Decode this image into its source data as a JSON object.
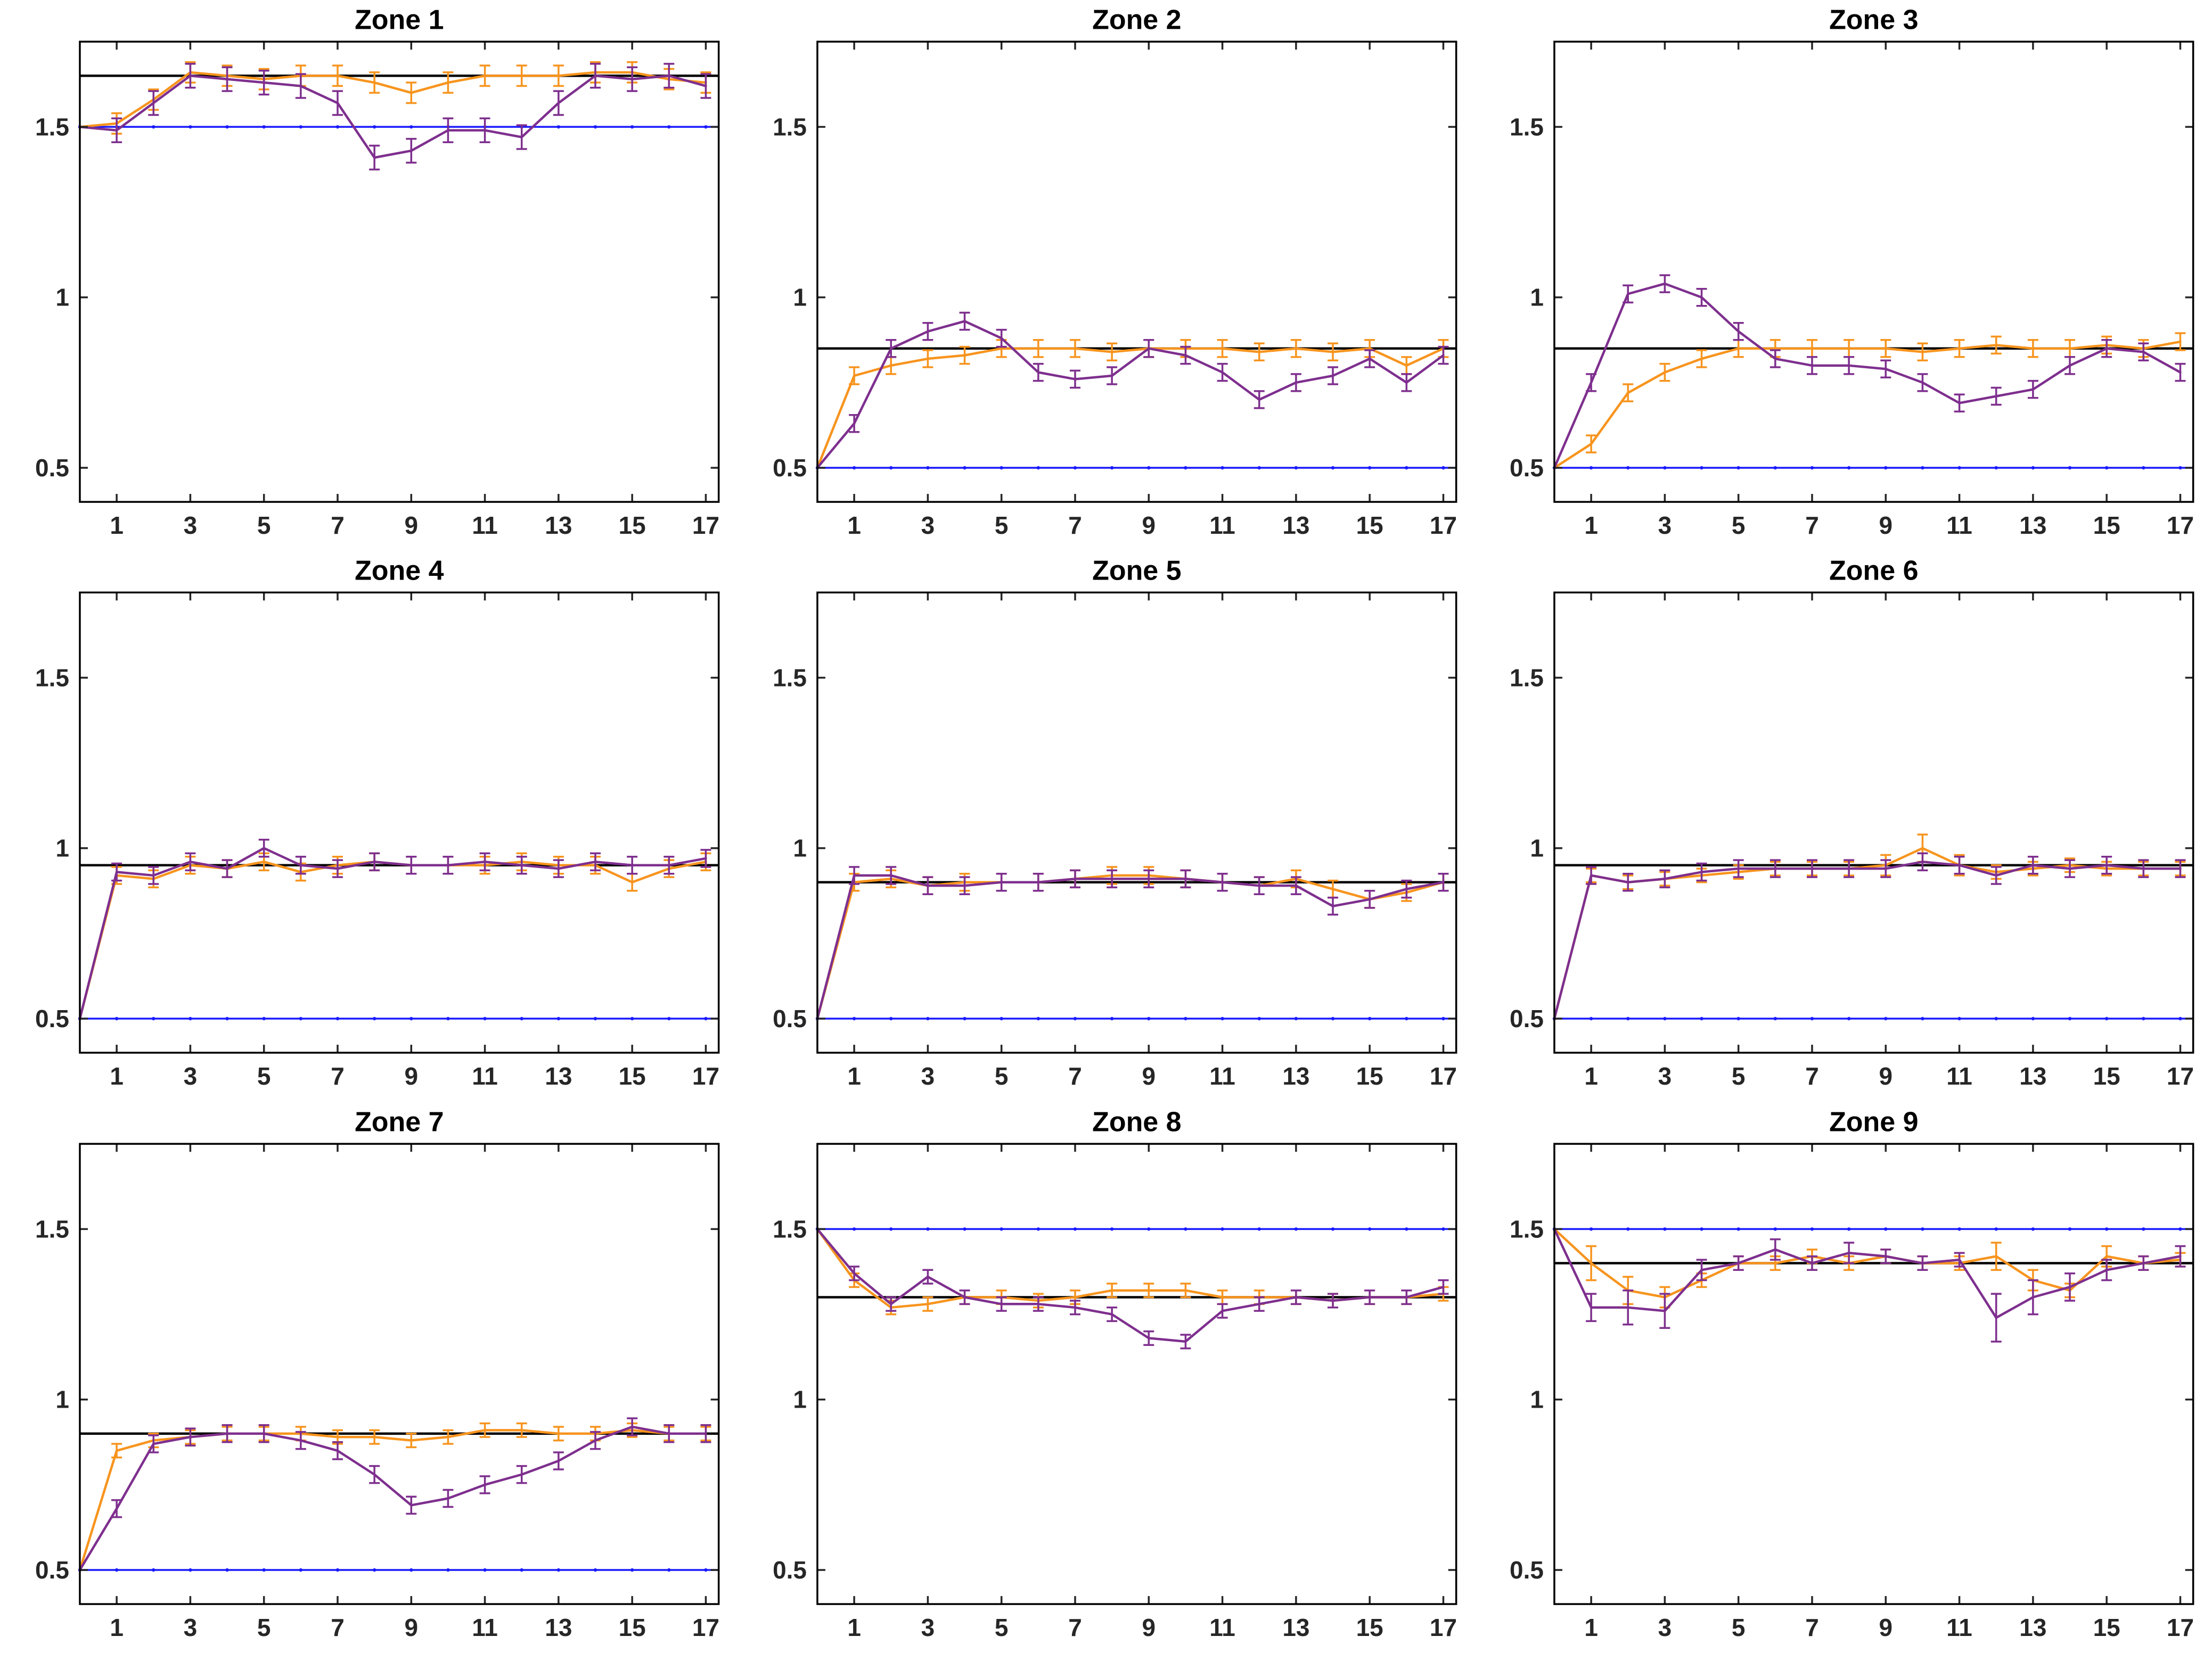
{
  "figure": {
    "background": "#ffffff",
    "layout": "3x3 grid of subplots",
    "colors": {
      "orange_series": "#F7941E",
      "purple_series": "#7E2F8E",
      "blue_reference": "#1A1AFF",
      "black_reference": "#000000",
      "axis_text": "#262626"
    }
  },
  "chart_data": [
    {
      "type": "line",
      "title": "Zone 1",
      "x": [
        0,
        1,
        2,
        3,
        4,
        5,
        6,
        7,
        8,
        9,
        10,
        11,
        12,
        13,
        14,
        15,
        16,
        17
      ],
      "xlim": [
        0,
        17.35
      ],
      "ylim": [
        0.4,
        1.75
      ],
      "xticks": [
        1,
        3,
        5,
        7,
        9,
        11,
        13,
        15,
        17
      ],
      "yticks": [
        0.5,
        1,
        1.5
      ],
      "ref_lines": [
        {
          "name": "blue-reference",
          "y": 1.5,
          "color": "#1A1AFF",
          "width": 3.5,
          "markers": true
        },
        {
          "name": "black-reference",
          "y": 1.65,
          "color": "#000000",
          "width": 4.5
        }
      ],
      "series": [
        {
          "name": "orange",
          "color": "#F7941E",
          "values": [
            1.5,
            1.51,
            1.58,
            1.66,
            1.65,
            1.64,
            1.65,
            1.65,
            1.63,
            1.6,
            1.63,
            1.65,
            1.65,
            1.65,
            1.66,
            1.66,
            1.64,
            1.63
          ],
          "err": 0.03
        },
        {
          "name": "purple",
          "color": "#7E2F8E",
          "values": [
            1.5,
            1.49,
            1.57,
            1.65,
            1.64,
            1.63,
            1.62,
            1.57,
            1.41,
            1.43,
            1.49,
            1.49,
            1.47,
            1.57,
            1.65,
            1.64,
            1.65,
            1.62
          ],
          "err": 0.035
        }
      ]
    },
    {
      "type": "line",
      "title": "Zone 2",
      "x": [
        0,
        1,
        2,
        3,
        4,
        5,
        6,
        7,
        8,
        9,
        10,
        11,
        12,
        13,
        14,
        15,
        16,
        17
      ],
      "xlim": [
        0,
        17.35
      ],
      "ylim": [
        0.4,
        1.75
      ],
      "xticks": [
        1,
        3,
        5,
        7,
        9,
        11,
        13,
        15,
        17
      ],
      "yticks": [
        0.5,
        1,
        1.5
      ],
      "ref_lines": [
        {
          "name": "blue-reference",
          "y": 0.5,
          "color": "#1A1AFF",
          "width": 3.5,
          "markers": true
        },
        {
          "name": "black-reference",
          "y": 0.85,
          "color": "#000000",
          "width": 4.5
        }
      ],
      "series": [
        {
          "name": "orange",
          "color": "#F7941E",
          "values": [
            0.5,
            0.77,
            0.8,
            0.82,
            0.83,
            0.85,
            0.85,
            0.85,
            0.84,
            0.85,
            0.85,
            0.85,
            0.84,
            0.85,
            0.84,
            0.85,
            0.8,
            0.85
          ],
          "err": 0.025
        },
        {
          "name": "purple",
          "color": "#7E2F8E",
          "values": [
            0.5,
            0.63,
            0.85,
            0.9,
            0.93,
            0.88,
            0.78,
            0.76,
            0.77,
            0.85,
            0.83,
            0.78,
            0.7,
            0.75,
            0.77,
            0.82,
            0.75,
            0.83
          ],
          "err": 0.025
        }
      ]
    },
    {
      "type": "line",
      "title": "Zone 3",
      "x": [
        0,
        1,
        2,
        3,
        4,
        5,
        6,
        7,
        8,
        9,
        10,
        11,
        12,
        13,
        14,
        15,
        16,
        17
      ],
      "xlim": [
        0,
        17.35
      ],
      "ylim": [
        0.4,
        1.75
      ],
      "xticks": [
        1,
        3,
        5,
        7,
        9,
        11,
        13,
        15,
        17
      ],
      "yticks": [
        0.5,
        1,
        1.5
      ],
      "ref_lines": [
        {
          "name": "blue-reference",
          "y": 0.5,
          "color": "#1A1AFF",
          "width": 3.5,
          "markers": true
        },
        {
          "name": "black-reference",
          "y": 0.85,
          "color": "#000000",
          "width": 4.5
        }
      ],
      "series": [
        {
          "name": "orange",
          "color": "#F7941E",
          "values": [
            0.5,
            0.57,
            0.72,
            0.78,
            0.82,
            0.85,
            0.85,
            0.85,
            0.85,
            0.85,
            0.84,
            0.85,
            0.86,
            0.85,
            0.85,
            0.86,
            0.85,
            0.87
          ],
          "err": 0.025
        },
        {
          "name": "purple",
          "color": "#7E2F8E",
          "values": [
            0.5,
            0.75,
            1.01,
            1.04,
            1.0,
            0.9,
            0.82,
            0.8,
            0.8,
            0.79,
            0.75,
            0.69,
            0.71,
            0.73,
            0.8,
            0.85,
            0.84,
            0.78
          ],
          "err": 0.025
        }
      ]
    },
    {
      "type": "line",
      "title": "Zone 4",
      "x": [
        0,
        1,
        2,
        3,
        4,
        5,
        6,
        7,
        8,
        9,
        10,
        11,
        12,
        13,
        14,
        15,
        16,
        17
      ],
      "xlim": [
        0,
        17.35
      ],
      "ylim": [
        0.4,
        1.75
      ],
      "xticks": [
        1,
        3,
        5,
        7,
        9,
        11,
        13,
        15,
        17
      ],
      "yticks": [
        0.5,
        1,
        1.5
      ],
      "ref_lines": [
        {
          "name": "blue-reference",
          "y": 0.5,
          "color": "#1A1AFF",
          "width": 3.5,
          "markers": true
        },
        {
          "name": "black-reference",
          "y": 0.95,
          "color": "#000000",
          "width": 4.5
        }
      ],
      "series": [
        {
          "name": "orange",
          "color": "#F7941E",
          "values": [
            0.5,
            0.92,
            0.91,
            0.95,
            0.94,
            0.96,
            0.93,
            0.95,
            0.96,
            0.95,
            0.95,
            0.95,
            0.96,
            0.95,
            0.95,
            0.9,
            0.94,
            0.96
          ],
          "err": 0.025
        },
        {
          "name": "purple",
          "color": "#7E2F8E",
          "values": [
            0.5,
            0.93,
            0.92,
            0.96,
            0.94,
            1.0,
            0.95,
            0.94,
            0.96,
            0.95,
            0.95,
            0.96,
            0.95,
            0.94,
            0.96,
            0.95,
            0.95,
            0.97
          ],
          "err": 0.025
        }
      ]
    },
    {
      "type": "line",
      "title": "Zone 5",
      "x": [
        0,
        1,
        2,
        3,
        4,
        5,
        6,
        7,
        8,
        9,
        10,
        11,
        12,
        13,
        14,
        15,
        16,
        17
      ],
      "xlim": [
        0,
        17.35
      ],
      "ylim": [
        0.4,
        1.75
      ],
      "xticks": [
        1,
        3,
        5,
        7,
        9,
        11,
        13,
        15,
        17
      ],
      "yticks": [
        0.5,
        1,
        1.5
      ],
      "ref_lines": [
        {
          "name": "blue-reference",
          "y": 0.5,
          "color": "#1A1AFF",
          "width": 3.5,
          "markers": true
        },
        {
          "name": "black-reference",
          "y": 0.9,
          "color": "#000000",
          "width": 4.5
        }
      ],
      "series": [
        {
          "name": "orange",
          "color": "#F7941E",
          "values": [
            0.5,
            0.9,
            0.91,
            0.89,
            0.9,
            0.9,
            0.9,
            0.91,
            0.92,
            0.92,
            0.91,
            0.9,
            0.89,
            0.91,
            0.88,
            0.85,
            0.87,
            0.9
          ],
          "err": 0.025
        },
        {
          "name": "purple",
          "color": "#7E2F8E",
          "values": [
            0.5,
            0.92,
            0.92,
            0.89,
            0.89,
            0.9,
            0.9,
            0.91,
            0.91,
            0.91,
            0.91,
            0.9,
            0.89,
            0.89,
            0.83,
            0.85,
            0.88,
            0.9
          ],
          "err": 0.025
        }
      ]
    },
    {
      "type": "line",
      "title": "Zone 6",
      "x": [
        0,
        1,
        2,
        3,
        4,
        5,
        6,
        7,
        8,
        9,
        10,
        11,
        12,
        13,
        14,
        15,
        16,
        17
      ],
      "xlim": [
        0,
        17.35
      ],
      "ylim": [
        0.4,
        1.75
      ],
      "xticks": [
        1,
        3,
        5,
        7,
        9,
        11,
        13,
        15,
        17
      ],
      "yticks": [
        0.5,
        1,
        1.5
      ],
      "ref_lines": [
        {
          "name": "blue-reference",
          "y": 0.5,
          "color": "#1A1AFF",
          "width": 3.5,
          "markers": true
        },
        {
          "name": "black-reference",
          "y": 0.95,
          "color": "#000000",
          "width": 4.5
        }
      ],
      "series": [
        {
          "name": "orange",
          "color": "#F7941E",
          "values": [
            0.5,
            0.92,
            0.9,
            0.91,
            0.92,
            0.93,
            0.94,
            0.94,
            0.94,
            0.95,
            1.0,
            0.95,
            0.93,
            0.94,
            0.95,
            0.94,
            0.94,
            0.94
          ],
          "err": [
            0,
            0.02,
            0.02,
            0.02,
            0.02,
            0.02,
            0.02,
            0.02,
            0.02,
            0.03,
            0.04,
            0.03,
            0.02,
            0.02,
            0.02,
            0.02,
            0.02,
            0.02
          ]
        },
        {
          "name": "purple",
          "color": "#7E2F8E",
          "values": [
            0.5,
            0.92,
            0.9,
            0.91,
            0.93,
            0.94,
            0.94,
            0.94,
            0.94,
            0.94,
            0.96,
            0.95,
            0.92,
            0.95,
            0.94,
            0.95,
            0.94,
            0.94
          ],
          "err": 0.025
        }
      ]
    },
    {
      "type": "line",
      "title": "Zone 7",
      "x": [
        0,
        1,
        2,
        3,
        4,
        5,
        6,
        7,
        8,
        9,
        10,
        11,
        12,
        13,
        14,
        15,
        16,
        17
      ],
      "xlim": [
        0,
        17.35
      ],
      "ylim": [
        0.4,
        1.75
      ],
      "xticks": [
        1,
        3,
        5,
        7,
        9,
        11,
        13,
        15,
        17
      ],
      "yticks": [
        0.5,
        1,
        1.5
      ],
      "ref_lines": [
        {
          "name": "blue-reference",
          "y": 0.5,
          "color": "#1A1AFF",
          "width": 3.5,
          "markers": true
        },
        {
          "name": "black-reference",
          "y": 0.9,
          "color": "#000000",
          "width": 4.5
        }
      ],
      "series": [
        {
          "name": "orange",
          "color": "#F7941E",
          "values": [
            0.5,
            0.85,
            0.88,
            0.89,
            0.9,
            0.9,
            0.9,
            0.89,
            0.89,
            0.88,
            0.89,
            0.91,
            0.91,
            0.9,
            0.9,
            0.91,
            0.9,
            0.9
          ],
          "err": 0.02
        },
        {
          "name": "purple",
          "color": "#7E2F8E",
          "values": [
            0.5,
            0.68,
            0.87,
            0.89,
            0.9,
            0.9,
            0.88,
            0.85,
            0.78,
            0.69,
            0.71,
            0.75,
            0.78,
            0.82,
            0.88,
            0.92,
            0.9,
            0.9
          ],
          "err": 0.025
        }
      ]
    },
    {
      "type": "line",
      "title": "Zone 8",
      "x": [
        0,
        1,
        2,
        3,
        4,
        5,
        6,
        7,
        8,
        9,
        10,
        11,
        12,
        13,
        14,
        15,
        16,
        17
      ],
      "xlim": [
        0,
        17.35
      ],
      "ylim": [
        0.4,
        1.75
      ],
      "xticks": [
        1,
        3,
        5,
        7,
        9,
        11,
        13,
        15,
        17
      ],
      "yticks": [
        0.5,
        1,
        1.5
      ],
      "ref_lines": [
        {
          "name": "blue-reference",
          "y": 1.5,
          "color": "#1A1AFF",
          "width": 3.5,
          "markers": true
        },
        {
          "name": "black-reference",
          "y": 1.3,
          "color": "#000000",
          "width": 4.5
        }
      ],
      "series": [
        {
          "name": "orange",
          "color": "#F7941E",
          "values": [
            1.5,
            1.35,
            1.27,
            1.28,
            1.3,
            1.3,
            1.29,
            1.3,
            1.32,
            1.32,
            1.32,
            1.3,
            1.3,
            1.3,
            1.29,
            1.3,
            1.3,
            1.31
          ],
          "err": 0.02
        },
        {
          "name": "purple",
          "color": "#7E2F8E",
          "values": [
            1.5,
            1.37,
            1.28,
            1.36,
            1.3,
            1.28,
            1.28,
            1.27,
            1.25,
            1.18,
            1.17,
            1.26,
            1.28,
            1.3,
            1.29,
            1.3,
            1.3,
            1.33
          ],
          "err": 0.02
        }
      ]
    },
    {
      "type": "line",
      "title": "Zone 9",
      "x": [
        0,
        1,
        2,
        3,
        4,
        5,
        6,
        7,
        8,
        9,
        10,
        11,
        12,
        13,
        14,
        15,
        16,
        17
      ],
      "xlim": [
        0,
        17.35
      ],
      "ylim": [
        0.4,
        1.75
      ],
      "xticks": [
        1,
        3,
        5,
        7,
        9,
        11,
        13,
        15,
        17
      ],
      "yticks": [
        0.5,
        1,
        1.5
      ],
      "ref_lines": [
        {
          "name": "blue-reference",
          "y": 1.5,
          "color": "#1A1AFF",
          "width": 3.5,
          "markers": true
        },
        {
          "name": "black-reference",
          "y": 1.4,
          "color": "#000000",
          "width": 4.5
        }
      ],
      "series": [
        {
          "name": "orange",
          "color": "#F7941E",
          "values": [
            1.5,
            1.4,
            1.32,
            1.3,
            1.35,
            1.4,
            1.4,
            1.42,
            1.4,
            1.42,
            1.4,
            1.4,
            1.42,
            1.35,
            1.32,
            1.42,
            1.4,
            1.41
          ],
          "err": [
            0,
            0.05,
            0.04,
            0.03,
            0.02,
            0.02,
            0.02,
            0.02,
            0.02,
            0.02,
            0.02,
            0.02,
            0.04,
            0.03,
            0.02,
            0.03,
            0.02,
            0.02
          ]
        },
        {
          "name": "purple",
          "color": "#7E2F8E",
          "values": [
            1.5,
            1.27,
            1.27,
            1.26,
            1.38,
            1.4,
            1.44,
            1.4,
            1.43,
            1.42,
            1.4,
            1.41,
            1.24,
            1.3,
            1.33,
            1.38,
            1.4,
            1.42
          ],
          "err": [
            0,
            0.04,
            0.05,
            0.05,
            0.03,
            0.02,
            0.03,
            0.02,
            0.03,
            0.02,
            0.02,
            0.02,
            0.07,
            0.05,
            0.04,
            0.03,
            0.02,
            0.03
          ]
        }
      ]
    }
  ]
}
